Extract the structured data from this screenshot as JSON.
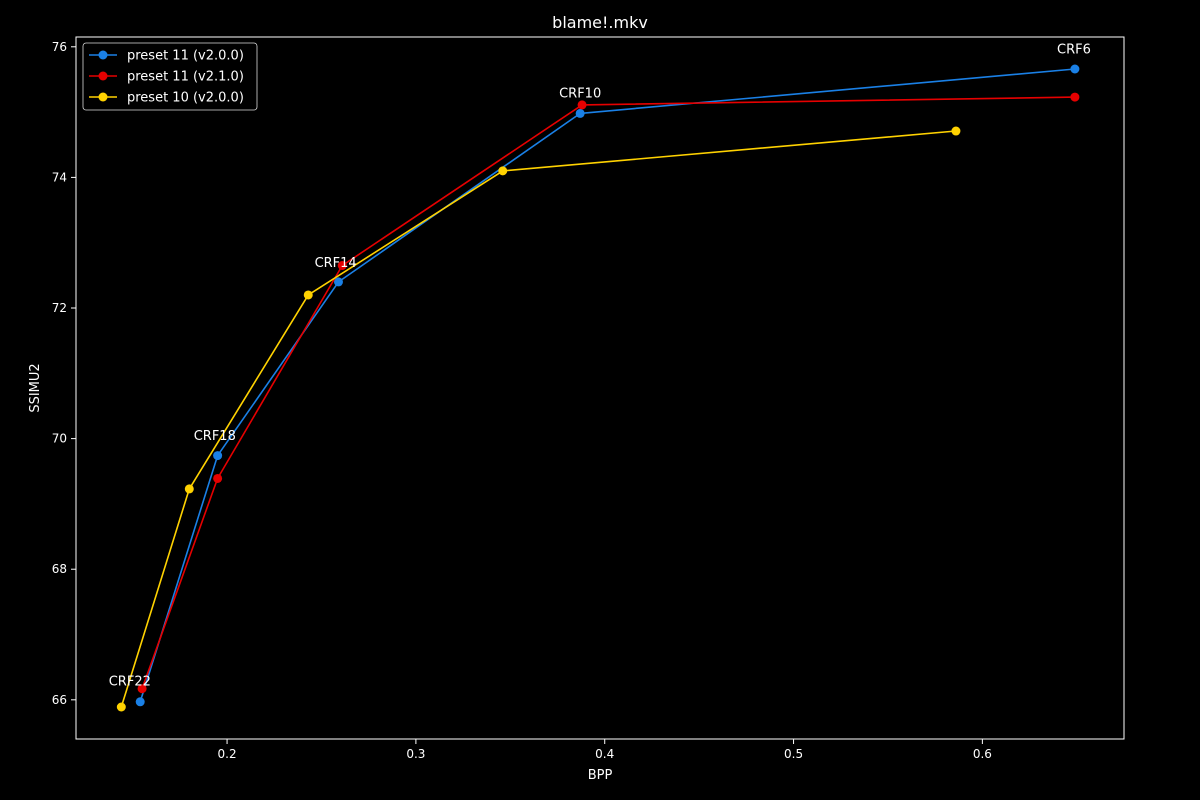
{
  "chart_data": {
    "type": "line",
    "title": "blame!.mkv",
    "xlabel": "BPP",
    "ylabel": "SSIMU2",
    "xlim": [
      0.12,
      0.675
    ],
    "ylim": [
      65.4,
      76.15
    ],
    "xticks": [
      0.2,
      0.3,
      0.4,
      0.5,
      0.6
    ],
    "xtick_labels": [
      "0.2",
      "0.3",
      "0.4",
      "0.5",
      "0.6"
    ],
    "yticks": [
      66,
      68,
      70,
      72,
      74,
      76
    ],
    "ytick_labels": [
      "66",
      "68",
      "70",
      "72",
      "74",
      "76"
    ],
    "grid": false,
    "legend_position": "top-left",
    "background": "#000000",
    "series": [
      {
        "name": "preset 11 (v2.0.0)",
        "color": "#1a80e6",
        "x": [
          0.154,
          0.195,
          0.259,
          0.387,
          0.649
        ],
        "y": [
          65.97,
          69.74,
          72.4,
          74.98,
          75.66
        ]
      },
      {
        "name": "preset 11 (v2.1.0)",
        "color": "#e60000",
        "x": [
          0.155,
          0.195,
          0.261,
          0.388,
          0.649
        ],
        "y": [
          66.17,
          69.39,
          72.65,
          75.11,
          75.23
        ]
      },
      {
        "name": "preset 10 (v2.0.0)",
        "color": "#ffd200",
        "x": [
          0.144,
          0.18,
          0.243,
          0.346,
          0.586
        ],
        "y": [
          65.89,
          69.23,
          72.2,
          74.1,
          74.71
        ]
      }
    ],
    "annotations": [
      {
        "text": "CRF22",
        "x": 0.1485,
        "y": 66.22
      },
      {
        "text": "CRF18",
        "x": 0.1935,
        "y": 69.98
      },
      {
        "text": "CRF14",
        "x": 0.2575,
        "y": 72.63
      },
      {
        "text": "CRF10",
        "x": 0.387,
        "y": 75.22
      },
      {
        "text": "CRF6",
        "x": 0.6485,
        "y": 75.9
      }
    ]
  }
}
